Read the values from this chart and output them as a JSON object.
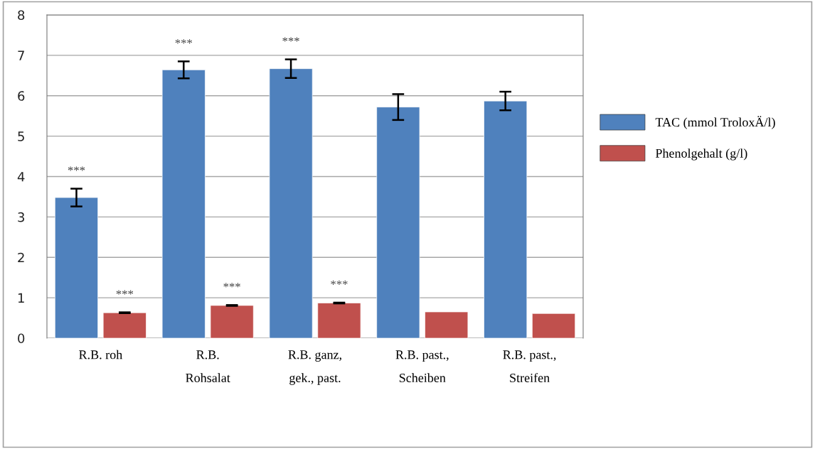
{
  "chart_data": {
    "type": "bar",
    "categories": [
      "R.B. roh",
      "R.B.\nRohsalat",
      "R.B. ganz,\ngek., past.",
      "R.B. past.,\nScheiben",
      "R.B. past.,\nStreifen"
    ],
    "series": [
      {
        "name": "TAC (mmol TroloxÄ/l)",
        "color": "#4f81bd",
        "values": [
          3.48,
          6.64,
          6.67,
          5.72,
          5.87
        ],
        "errors": [
          0.22,
          0.21,
          0.23,
          0.32,
          0.23
        ]
      },
      {
        "name": "Phenolgehalt (g/l)",
        "color": "#c0504d",
        "values": [
          0.63,
          0.81,
          0.87,
          0.65,
          0.61
        ],
        "errors": [
          0.01,
          0.01,
          0.01,
          null,
          null
        ]
      }
    ],
    "ylim": [
      0,
      8
    ],
    "yticks": [
      0,
      1,
      2,
      3,
      4,
      5,
      6,
      7,
      8
    ],
    "grid": "y",
    "legend": "right",
    "annotations": [
      {
        "text": "***",
        "x": "R.B. roh",
        "y": 3.48
      },
      {
        "text": "***",
        "x": "R.B. roh",
        "y": 0.64
      },
      {
        "text": "***",
        "x": "R.B.\nRohsalat",
        "y": 6.64
      },
      {
        "text": "***",
        "x": "R.B.\nRohsalat",
        "y": 0.82
      },
      {
        "text": "***",
        "x": "R.B. ganz,\ngek., past.",
        "y": 6.67
      },
      {
        "text": "***",
        "x": "R.B. ganz,\ngek., past.",
        "y": 0.88
      }
    ]
  }
}
